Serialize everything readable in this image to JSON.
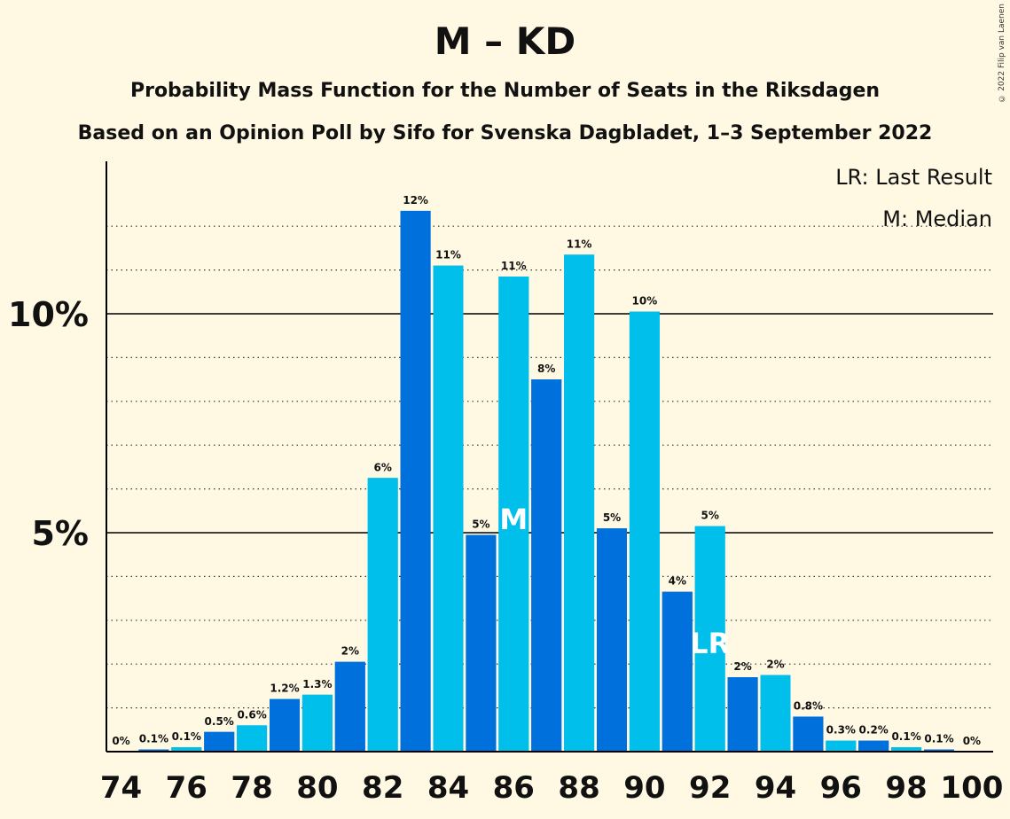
{
  "title": "M – KD",
  "subtitle": "Probability Mass Function for the Number of Seats in the Riksdagen",
  "source_line": "Based on an Opinion Poll by Sifo for Svenska Dagbladet, 1–3 September 2022",
  "copyright": "© 2022 Filip van Laenen",
  "legend": {
    "last_result": "LR: Last Result",
    "median": "M: Median"
  },
  "colors": {
    "dark_blue": "#0070DD",
    "light_blue": "#00BFEA",
    "background": "#FFF9E3"
  },
  "chart_data": {
    "type": "bar",
    "x": [
      74,
      75,
      76,
      77,
      78,
      79,
      80,
      81,
      82,
      83,
      84,
      85,
      86,
      87,
      88,
      89,
      90,
      91,
      92,
      93,
      94,
      95,
      96,
      97,
      98,
      99,
      100
    ],
    "values": [
      0,
      0.05,
      0.1,
      0.45,
      0.6,
      1.2,
      1.3,
      2.05,
      6.25,
      12.35,
      11.1,
      4.95,
      10.85,
      8.5,
      11.35,
      5.1,
      10.05,
      3.65,
      5.15,
      1.7,
      1.75,
      0.8,
      0.25,
      0.25,
      0.1,
      0.05,
      0
    ],
    "labels": [
      "0%",
      "0.1%",
      "0.1%",
      "0.5%",
      "0.6%",
      "1.2%",
      "1.3%",
      "2%",
      "6%",
      "12%",
      "11%",
      "5%",
      "11%",
      "8%",
      "11%",
      "5%",
      "10%",
      "4%",
      "5%",
      "2%",
      "2%",
      "0.8%",
      "0.3%",
      "0.2%",
      "0.1%",
      "0.1%",
      "0%"
    ],
    "x_tick_labels": [
      "74",
      "76",
      "78",
      "80",
      "82",
      "84",
      "86",
      "88",
      "90",
      "92",
      "94",
      "96",
      "98",
      "100"
    ],
    "y_tick_labels": [
      {
        "value": 5,
        "label": "5%"
      },
      {
        "value": 10,
        "label": "10%"
      }
    ],
    "ylim": [
      0,
      13.5
    ],
    "median_seat": 86,
    "median_marker": "M",
    "last_result_seat": 92,
    "last_result_marker": "LR",
    "grid": "dotted minor lines every 1%, solid lines at 5% and 10%"
  }
}
